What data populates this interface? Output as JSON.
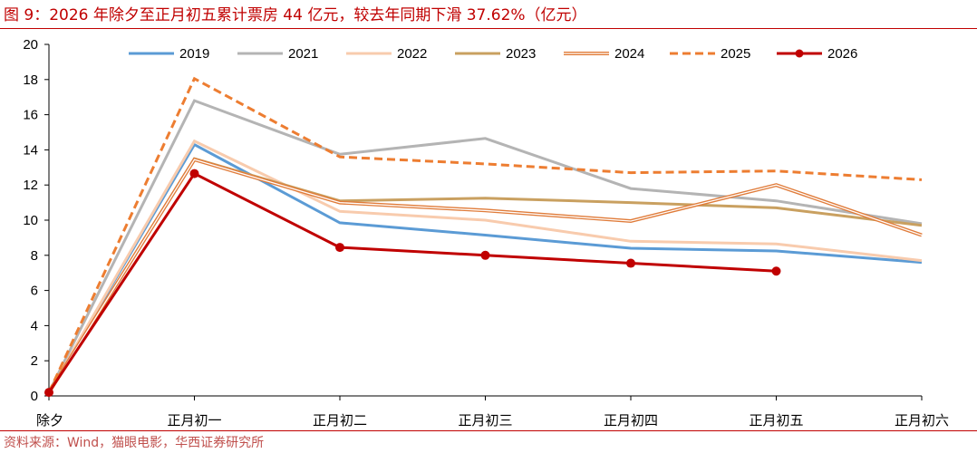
{
  "figure": {
    "title": "图 9：2026 年除夕至正月初五累计票房 44 亿元，较去年同期下滑 37.62%（亿元）",
    "source": "资料来源：Wind，猫眼电影，华西证券研究所"
  },
  "chart_data": {
    "type": "line",
    "title": "",
    "xlabel": "",
    "ylabel": "",
    "categories": [
      "除夕",
      "正月初一",
      "正月初二",
      "正月初三",
      "正月初四",
      "正月初五",
      "正月初六"
    ],
    "ylim": [
      0,
      20
    ],
    "yticks": [
      0,
      2,
      4,
      6,
      8,
      10,
      12,
      14,
      16,
      18,
      20
    ],
    "grid": false,
    "legend_position": "top",
    "series": [
      {
        "name": "2019",
        "color": "#5b9bd5",
        "style": "solid",
        "values": [
          0.2,
          14.3,
          9.85,
          9.15,
          8.4,
          8.25,
          7.6
        ]
      },
      {
        "name": "2021",
        "color": "#b4b4b4",
        "style": "solid",
        "values": [
          0.2,
          16.8,
          13.75,
          14.65,
          11.8,
          11.1,
          9.8
        ]
      },
      {
        "name": "2022",
        "color": "#f8cbad",
        "style": "solid",
        "values": [
          0.2,
          14.5,
          10.5,
          10.0,
          8.8,
          8.65,
          7.7
        ]
      },
      {
        "name": "2023",
        "color": "#c9a060",
        "style": "solid",
        "values": [
          0.2,
          13.5,
          11.1,
          11.25,
          11.0,
          10.7,
          9.7
        ]
      },
      {
        "name": "2024",
        "color": "#e07b39",
        "style": "double",
        "values": [
          0.2,
          13.45,
          11.0,
          10.55,
          9.95,
          12.0,
          9.15
        ]
      },
      {
        "name": "2025",
        "color": "#ed7d31",
        "style": "dashed",
        "values": [
          0.2,
          18.05,
          13.6,
          13.2,
          12.7,
          12.8,
          12.3
        ]
      },
      {
        "name": "2026",
        "color": "#c00000",
        "style": "marker",
        "values": [
          0.2,
          12.65,
          8.45,
          8.0,
          7.55,
          7.1,
          null
        ]
      }
    ]
  }
}
